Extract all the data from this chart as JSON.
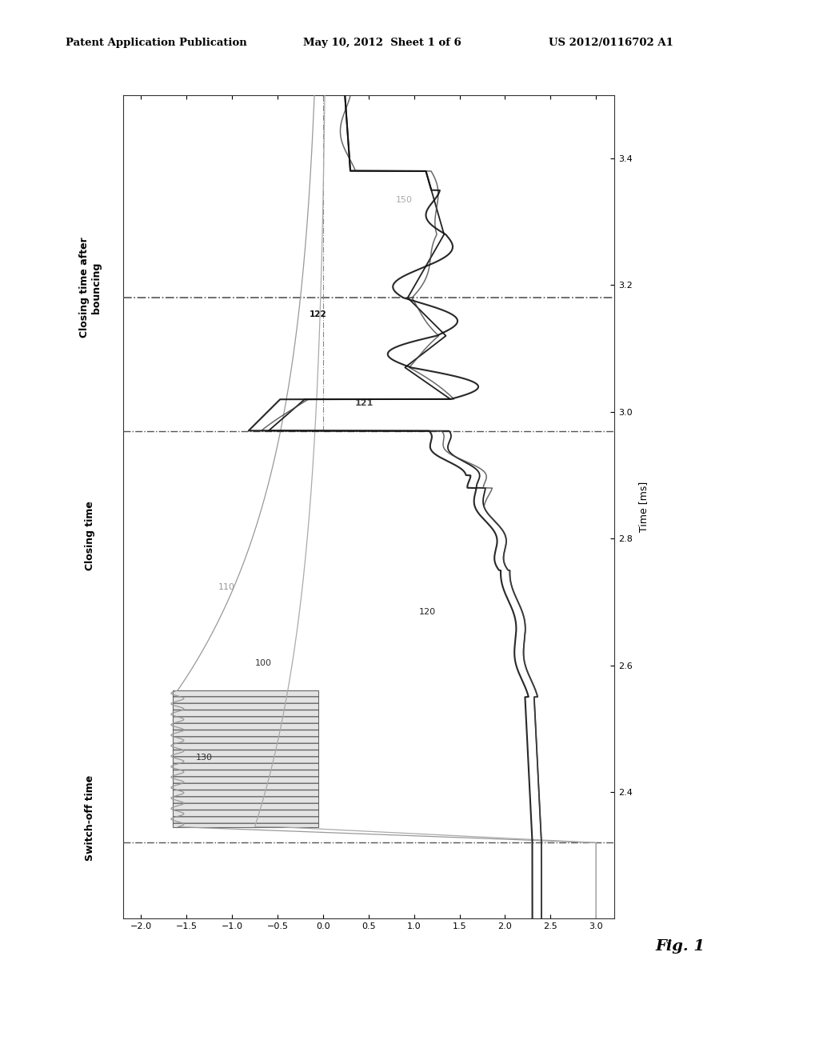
{
  "header_left": "Patent Application Publication",
  "header_mid": "May 10, 2012  Sheet 1 of 6",
  "header_right": "US 2012/0116702 A1",
  "fig_label": "Fig. 1",
  "time_label": "Time [ms]",
  "xlim_time": [
    2.2,
    3.5
  ],
  "ylim_signal": [
    -2.2,
    3.2
  ],
  "xticks_time": [
    2.4,
    2.6,
    2.8,
    3.0,
    3.2,
    3.4
  ],
  "yticks_signal": [
    3.0,
    2.5,
    2.0,
    1.5,
    1.0,
    0.5,
    0.0,
    -0.5,
    -1.0,
    -1.5,
    -2.0
  ],
  "vline_switchoff": 2.32,
  "vline_closing": 2.97,
  "vline_closing_bouncing": 3.18,
  "label_switchoff": "Switch-off time",
  "label_closing": "Closing time",
  "label_closing_bouncing": "Closing time after\nbouncing",
  "ref_100": "100",
  "ref_110": "110",
  "ref_120": "120",
  "ref_121": "121",
  "ref_122": "122",
  "ref_130": "130",
  "ref_150": "150",
  "background_color": "#ffffff"
}
